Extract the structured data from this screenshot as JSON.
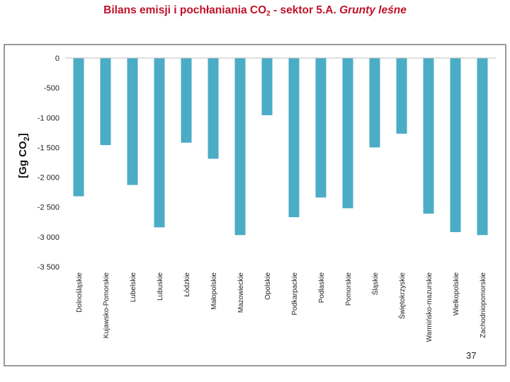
{
  "slide": {
    "title_pre": "Bilans emisji i pochłaniania CO",
    "title_sub": "2",
    "title_mid": "  - sektor 5.A. ",
    "title_italic": "Grunty leśne",
    "page_number": "37"
  },
  "chart_data": {
    "type": "bar",
    "title": "",
    "ylabel": "[Gg CO2]",
    "ylim": [
      -3500,
      0
    ],
    "yticks": [
      0,
      -500,
      -1000,
      -1500,
      -2000,
      -2500,
      -3000,
      -3500
    ],
    "ytick_labels": [
      "0",
      "-500",
      "-1 000",
      "-1 500",
      "-2 000",
      "-2 500",
      "-3 000",
      "-3 500"
    ],
    "grid": false,
    "legend": "none",
    "bar_color": "#4bacc6",
    "categories": [
      "Dolnośląskie",
      "Kujawsko-Pomorskie",
      "Lubelskie",
      "Lubuskie",
      "Łódzkie",
      "Małopolskie",
      "Mazowieckie",
      "Opolskie",
      "Podkarpackie",
      "Podlaskie",
      "Pomorskie",
      "Śląskie",
      "Świętokrzyskie",
      "Warmińsko-mazurskie",
      "Wielkopolskie",
      "Zachodniopomorskie"
    ],
    "values": [
      -2320,
      -1460,
      -2130,
      -2840,
      -1420,
      -1690,
      -2970,
      -960,
      -2670,
      -2340,
      -2520,
      -1500,
      -1270,
      -2610,
      -2920,
      -2970
    ]
  }
}
